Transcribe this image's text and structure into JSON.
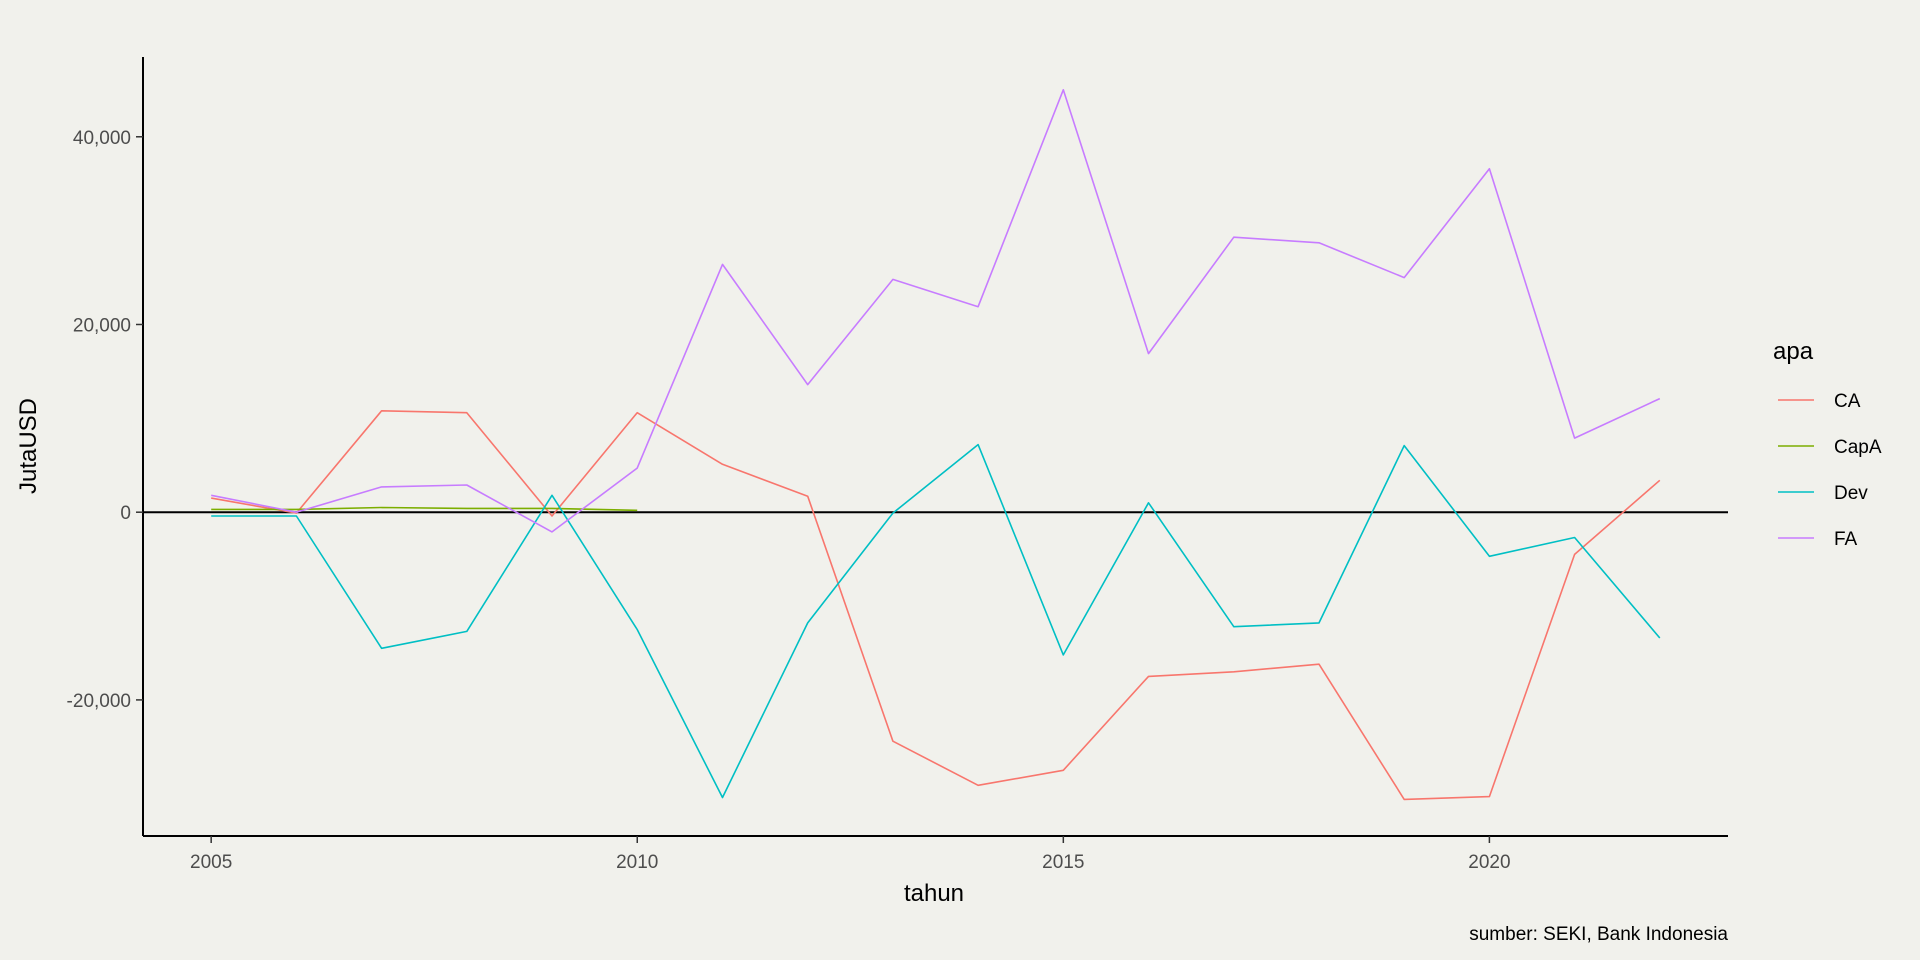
{
  "chart_data": {
    "type": "line",
    "xlabel": "tahun",
    "ylabel": "JutaUSD",
    "caption": "sumber: SEKI, Bank Indonesia",
    "xlim": [
      2004.2,
      2022.8
    ],
    "ylim": [
      -34500,
      48500
    ],
    "x_ticks": [
      2005,
      2010,
      2015,
      2020
    ],
    "x_tick_labels": [
      "2005",
      "2010",
      "2015",
      "2020"
    ],
    "y_ticks": [
      -20000,
      0,
      20000,
      40000
    ],
    "y_tick_labels": [
      "-20,000",
      "0",
      "20,000",
      "40,000"
    ],
    "hline": 0,
    "grid": false,
    "legend": {
      "title": "apa",
      "position": "right",
      "entries": [
        "CA",
        "CapA",
        "Dev",
        "FA"
      ]
    },
    "x": [
      2005,
      2006,
      2007,
      2008,
      2009,
      2010,
      2011,
      2012,
      2013,
      2014,
      2015,
      2016,
      2017,
      2018,
      2019,
      2020,
      2021,
      2022
    ],
    "series": [
      {
        "name": "CA",
        "color": "#F8766D",
        "x": [
          2005,
          2006,
          2007,
          2008,
          2009,
          2010,
          2011,
          2012,
          2013,
          2014,
          2015,
          2016,
          2017,
          2018,
          2019,
          2020,
          2021,
          2022
        ],
        "values": [
          1500,
          -100,
          10800,
          10600,
          -400,
          10600,
          5100,
          1700,
          -24400,
          -29100,
          -27500,
          -17500,
          -17000,
          -16200,
          -30600,
          -30300,
          -4500,
          3400
        ]
      },
      {
        "name": "CapA",
        "color": "#7CAE00",
        "x": [
          2005,
          2006,
          2007,
          2008,
          2009,
          2010
        ],
        "values": [
          300,
          300,
          500,
          400,
          400,
          200
        ]
      },
      {
        "name": "Dev",
        "color": "#00BFC4",
        "x": [
          2005,
          2006,
          2007,
          2008,
          2009,
          2010,
          2011,
          2012,
          2013,
          2014,
          2015,
          2016,
          2017,
          2018,
          2019,
          2020,
          2021,
          2022
        ],
        "values": [
          -400,
          -400,
          -14500,
          -12700,
          1800,
          -12500,
          -30400,
          -11800,
          -100,
          7200,
          -15200,
          1000,
          -12200,
          -11800,
          7100,
          -4700,
          -2700,
          -13400
        ]
      },
      {
        "name": "FA",
        "color": "#C77CFF",
        "x": [
          2005,
          2006,
          2007,
          2008,
          2009,
          2010,
          2011,
          2012,
          2013,
          2014,
          2015,
          2016,
          2017,
          2018,
          2019,
          2020,
          2021,
          2022
        ],
        "values": [
          1800,
          0,
          2700,
          2900,
          -2100,
          4700,
          26400,
          13600,
          24800,
          21900,
          45000,
          16900,
          29300,
          28700,
          25000,
          36600,
          7900,
          12100
        ]
      }
    ]
  }
}
